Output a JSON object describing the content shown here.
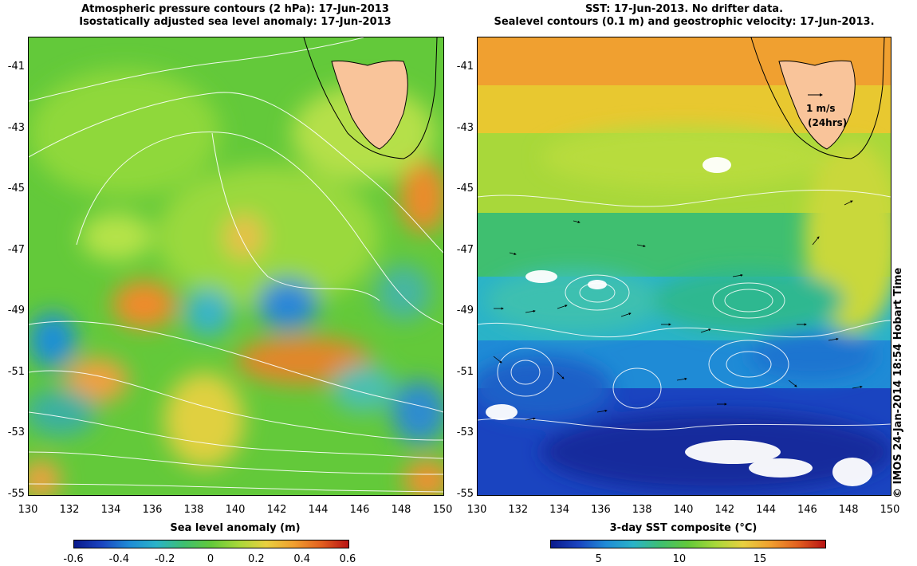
{
  "left_panel": {
    "title_line1": "Atmospheric pressure contours (2 hPa): 17-Jun-2013",
    "title_line2": "Isostatically adjusted sea level anomaly: 17-Jun-2013",
    "colorbar_label": "Sea level anomaly (m)",
    "colorbar_ticks": [
      "-0.6",
      "-0.4",
      "-0.2",
      "0",
      "0.2",
      "0.4",
      "0.6"
    ],
    "colorbar_range": [
      -0.6,
      0.6
    ]
  },
  "right_panel": {
    "title_line1": "SST: 17-Jun-2013. No drifter data.",
    "title_line2": "Sealevel contours (0.1 m) and geostrophic velocity: 17-Jun-2013.",
    "colorbar_label": "3-day SST composite (°C)",
    "colorbar_ticks": [
      "5",
      "10",
      "15"
    ],
    "colorbar_range": [
      2,
      19
    ],
    "velocity_scale_label": "1 m/s",
    "velocity_scale_sub": "(24hrs)"
  },
  "axes": {
    "y_ticks": [
      "-41",
      "-43",
      "-45",
      "-47",
      "-49",
      "-51",
      "-53",
      "-55"
    ],
    "x_ticks": [
      "130",
      "132",
      "134",
      "136",
      "138",
      "140",
      "142",
      "144",
      "146",
      "148",
      "150"
    ],
    "lon_range": [
      130,
      150
    ],
    "lat_range": [
      -55,
      -40
    ]
  },
  "credit": "© IMOS 24-Jan-2014 18:54 Hobart Time",
  "colors": {
    "land": "#f9c49a",
    "contour": "#ffffff",
    "coast": "#000000"
  }
}
